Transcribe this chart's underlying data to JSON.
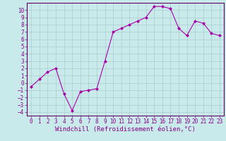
{
  "x": [
    0,
    1,
    2,
    3,
    4,
    5,
    6,
    7,
    8,
    9,
    10,
    11,
    12,
    13,
    14,
    15,
    16,
    17,
    18,
    19,
    20,
    21,
    22,
    23
  ],
  "y": [
    -0.5,
    0.5,
    1.5,
    2.0,
    -1.5,
    -3.8,
    -1.2,
    -1.0,
    -0.8,
    3.0,
    7.0,
    7.5,
    8.0,
    8.5,
    9.0,
    10.5,
    10.5,
    10.2,
    7.5,
    6.5,
    8.5,
    8.2,
    6.8,
    6.5
  ],
  "line_color": "#aa00aa",
  "marker": "D",
  "marker_size": 2,
  "bg_color": "#c8eaea",
  "grid_color": "#aacccc",
  "xlabel": "Windchill (Refroidissement éolien,°C)",
  "xlim": [
    -0.5,
    23.5
  ],
  "ylim": [
    -4.5,
    11.0
  ],
  "xticks": [
    0,
    1,
    2,
    3,
    4,
    5,
    6,
    7,
    8,
    9,
    10,
    11,
    12,
    13,
    14,
    15,
    16,
    17,
    18,
    19,
    20,
    21,
    22,
    23
  ],
  "yticks": [
    -4,
    -3,
    -2,
    -1,
    0,
    1,
    2,
    3,
    4,
    5,
    6,
    7,
    8,
    9,
    10
  ],
  "axis_color": "#660066",
  "font_color": "#880088",
  "tick_fontsize": 5.5,
  "label_fontsize": 6.5
}
